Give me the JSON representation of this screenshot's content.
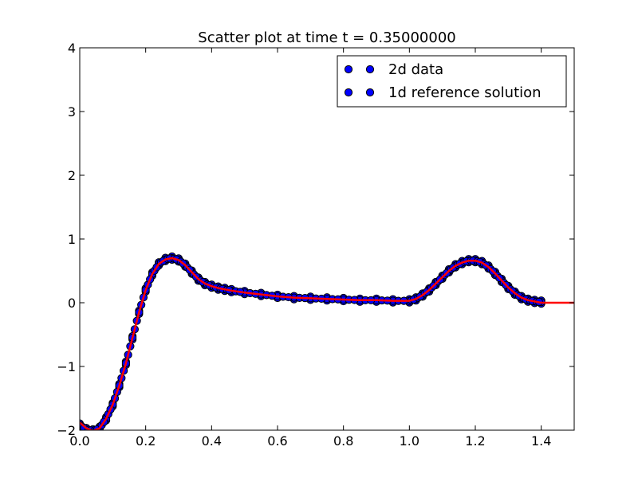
{
  "chart_data": {
    "type": "scatter",
    "title": "Scatter plot at time t =     0.35000000",
    "xlabel": "",
    "ylabel": "",
    "xlim": [
      0.0,
      1.5
    ],
    "ylim": [
      -2,
      4
    ],
    "x_ticks": [
      "0.0",
      "0.2",
      "0.4",
      "0.6",
      "0.8",
      "1.0",
      "1.2",
      "1.4"
    ],
    "y_ticks": [
      "−2",
      "−1",
      "0",
      "1",
      "2",
      "3",
      "4"
    ],
    "grid": false,
    "legend_position": "top-right",
    "legend": [
      "2d data",
      "1d reference solution"
    ],
    "colors": {
      "scatter_fill": "#0000ff",
      "scatter_edge": "#000000",
      "reference_line": "#ff0000",
      "axes": "#000000",
      "background": "#ffffff"
    },
    "series": [
      {
        "name": "2d data",
        "kind": "scatter",
        "x": [
          0.0,
          0.02,
          0.04,
          0.06,
          0.08,
          0.1,
          0.12,
          0.14,
          0.16,
          0.18,
          0.2,
          0.22,
          0.24,
          0.26,
          0.28,
          0.3,
          0.32,
          0.34,
          0.36,
          0.38,
          0.4,
          0.42,
          0.44,
          0.46,
          0.5,
          0.55,
          0.6,
          0.65,
          0.7,
          0.75,
          0.8,
          0.85,
          0.9,
          0.95,
          1.0,
          1.02,
          1.04,
          1.06,
          1.08,
          1.1,
          1.12,
          1.14,
          1.16,
          1.18,
          1.2,
          1.22,
          1.24,
          1.26,
          1.28,
          1.3,
          1.32,
          1.34,
          1.36,
          1.38,
          1.4
        ],
        "y": [
          -1.92,
          -1.99,
          -2.01,
          -1.97,
          -1.82,
          -1.6,
          -1.3,
          -0.95,
          -0.55,
          -0.15,
          0.2,
          0.45,
          0.61,
          0.68,
          0.7,
          0.67,
          0.59,
          0.48,
          0.37,
          0.3,
          0.26,
          0.23,
          0.21,
          0.19,
          0.16,
          0.13,
          0.1,
          0.08,
          0.07,
          0.06,
          0.05,
          0.04,
          0.04,
          0.03,
          0.03,
          0.06,
          0.12,
          0.2,
          0.3,
          0.4,
          0.5,
          0.58,
          0.63,
          0.66,
          0.66,
          0.63,
          0.56,
          0.46,
          0.35,
          0.24,
          0.15,
          0.08,
          0.04,
          0.02,
          0.01
        ]
      },
      {
        "name": "1d reference solution",
        "kind": "line",
        "x": [
          0.0,
          0.02,
          0.04,
          0.06,
          0.08,
          0.1,
          0.12,
          0.14,
          0.16,
          0.18,
          0.2,
          0.22,
          0.24,
          0.26,
          0.28,
          0.3,
          0.32,
          0.34,
          0.36,
          0.38,
          0.4,
          0.42,
          0.44,
          0.46,
          0.5,
          0.55,
          0.6,
          0.65,
          0.7,
          0.75,
          0.8,
          0.85,
          0.9,
          0.95,
          1.0,
          1.02,
          1.04,
          1.06,
          1.08,
          1.1,
          1.12,
          1.14,
          1.16,
          1.18,
          1.2,
          1.22,
          1.24,
          1.26,
          1.28,
          1.3,
          1.32,
          1.34,
          1.36,
          1.38,
          1.4,
          1.45,
          1.5
        ],
        "y": [
          -1.88,
          -1.97,
          -2.01,
          -1.97,
          -1.82,
          -1.6,
          -1.3,
          -0.95,
          -0.55,
          -0.15,
          0.2,
          0.45,
          0.61,
          0.68,
          0.7,
          0.67,
          0.59,
          0.48,
          0.37,
          0.3,
          0.26,
          0.23,
          0.21,
          0.19,
          0.16,
          0.13,
          0.1,
          0.08,
          0.07,
          0.06,
          0.05,
          0.04,
          0.04,
          0.03,
          0.03,
          0.06,
          0.12,
          0.2,
          0.3,
          0.4,
          0.5,
          0.58,
          0.63,
          0.66,
          0.66,
          0.63,
          0.56,
          0.46,
          0.35,
          0.24,
          0.15,
          0.08,
          0.04,
          0.02,
          0.0,
          0.0,
          0.0
        ]
      }
    ]
  }
}
